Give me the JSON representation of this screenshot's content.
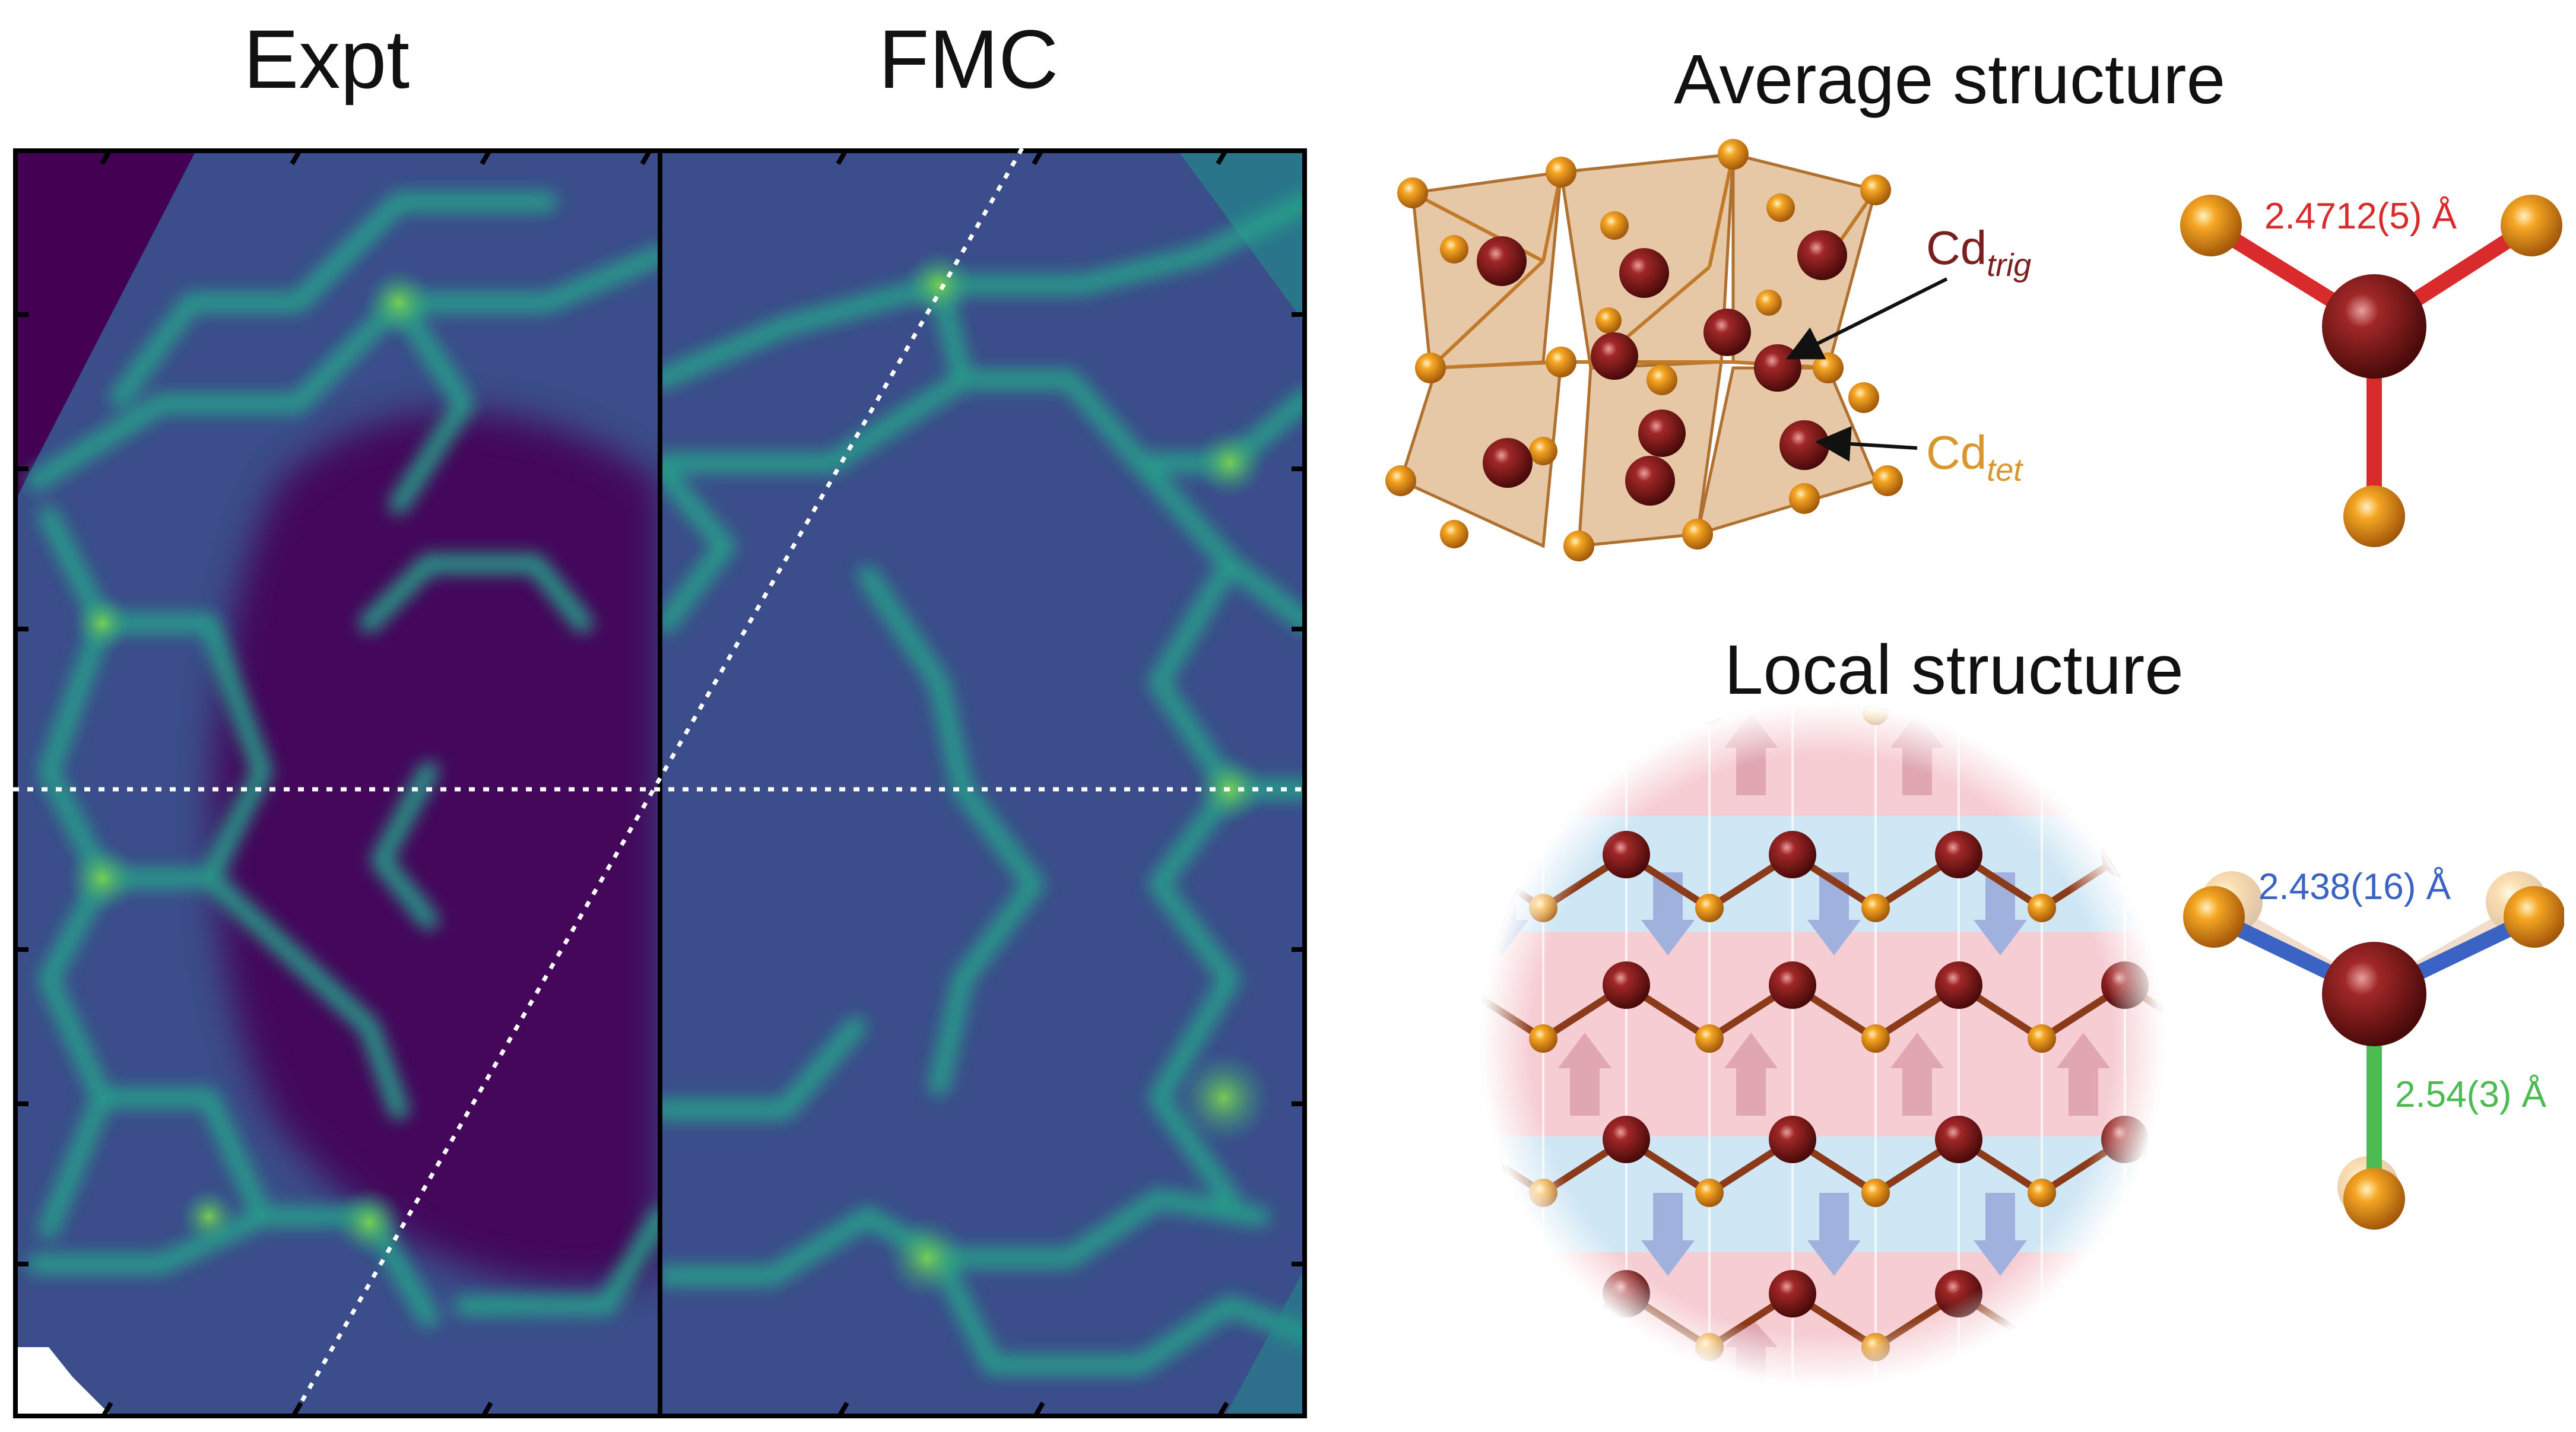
{
  "panel_titles": {
    "left_map": "Expt",
    "right_map": "FMC",
    "average": "Average structure",
    "local": "Local structure"
  },
  "labels": {
    "cd_main": "Cd",
    "trig_sub": "trig",
    "tet_sub": "tet",
    "avg_bond": "2.4712(5) Å",
    "local_bond_short": "2.438(16) Å",
    "local_bond_long": "2.54(3) Å"
  },
  "colors": {
    "map_bg": "#440154",
    "map_mid": "#3b528b",
    "map_line": "#21918c",
    "map_hot": "#5ec962",
    "cd_atom": "#8b1a1a",
    "cn_atom": "#f2a22a",
    "poly": "#c8863a",
    "avg_bond": "#d92b2b",
    "short_bond": "#3a63c4",
    "long_bond": "#4cbb52",
    "cd_trig_text": "#7a1f1f",
    "cd_tet_text": "#d9962d",
    "pink_band": "#f6cdd3",
    "blue_band": "#cfe6f4"
  },
  "icons": [
    "arrow-icon"
  ]
}
